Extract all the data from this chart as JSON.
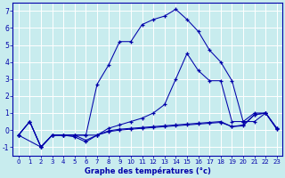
{
  "xlabel": "Graphe des températures (°c)",
  "background_color": "#c8ecee",
  "grid_color": "#ffffff",
  "line_color": "#0000aa",
  "xlim": [
    -0.5,
    23.5
  ],
  "ylim": [
    -1.5,
    7.5
  ],
  "yticks": [
    -1,
    0,
    1,
    2,
    3,
    4,
    5,
    6,
    7
  ],
  "xticks": [
    0,
    1,
    2,
    3,
    4,
    5,
    6,
    7,
    8,
    9,
    10,
    11,
    12,
    13,
    14,
    15,
    16,
    17,
    18,
    19,
    20,
    21,
    22,
    23
  ],
  "series": [
    {
      "x": [
        0,
        1,
        2,
        3,
        4,
        5,
        6,
        7,
        8,
        9,
        10,
        11,
        12,
        13,
        14,
        15,
        16,
        17,
        18,
        19,
        20,
        21,
        22,
        23
      ],
      "y": [
        -0.3,
        0.5,
        -1.0,
        -0.3,
        -0.3,
        -0.3,
        -0.3,
        -0.3,
        0.1,
        0.3,
        0.5,
        0.7,
        1.0,
        1.5,
        3.0,
        4.5,
        3.5,
        2.9,
        2.9,
        0.5,
        0.5,
        1.0,
        1.0,
        0.1
      ]
    },
    {
      "x": [
        0,
        2,
        3,
        4,
        5,
        6,
        7,
        8,
        9,
        10,
        11,
        12,
        13,
        14,
        15,
        16,
        17,
        18,
        19,
        20,
        21,
        22,
        23
      ],
      "y": [
        -0.3,
        -1.0,
        -0.3,
        -0.3,
        -0.3,
        -0.3,
        2.7,
        3.8,
        5.2,
        5.2,
        6.2,
        6.5,
        6.7,
        7.1,
        6.5,
        5.8,
        4.7,
        4.0,
        2.9,
        0.5,
        0.5,
        1.0,
        0.1
      ]
    },
    {
      "x": [
        0,
        1,
        2,
        3,
        4,
        5,
        6,
        7,
        8,
        9,
        10,
        11,
        12,
        13,
        14,
        15,
        16,
        17,
        18,
        19,
        20,
        21,
        22,
        23
      ],
      "y": [
        -0.3,
        0.5,
        -1.0,
        -0.3,
        -0.3,
        -0.4,
        -0.7,
        -0.3,
        -0.1,
        0.0,
        0.05,
        0.1,
        0.15,
        0.2,
        0.25,
        0.3,
        0.35,
        0.4,
        0.45,
        0.2,
        0.3,
        0.9,
        1.0,
        0.05
      ]
    },
    {
      "x": [
        0,
        1,
        2,
        3,
        4,
        5,
        6,
        7,
        8,
        9,
        10,
        11,
        12,
        13,
        14,
        15,
        16,
        17,
        18,
        19,
        20,
        21,
        22,
        23
      ],
      "y": [
        -0.3,
        0.5,
        -1.0,
        -0.3,
        -0.3,
        -0.3,
        -0.6,
        -0.3,
        -0.05,
        0.05,
        0.1,
        0.15,
        0.2,
        0.25,
        0.3,
        0.35,
        0.4,
        0.45,
        0.5,
        0.2,
        0.25,
        0.9,
        1.0,
        0.05
      ]
    }
  ]
}
